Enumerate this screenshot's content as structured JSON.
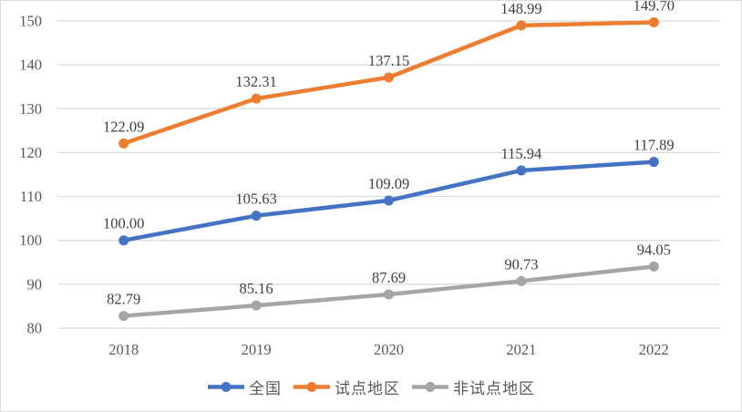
{
  "chart_data": {
    "type": "line",
    "title": "",
    "xlabel": "",
    "ylabel": "",
    "categories": [
      "2018",
      "2019",
      "2020",
      "2021",
      "2022"
    ],
    "series": [
      {
        "name": "全国",
        "color": "#4472C4",
        "values": [
          100.0,
          105.63,
          109.09,
          115.94,
          117.89
        ]
      },
      {
        "name": "试点地区",
        "color": "#ED7D31",
        "values": [
          122.09,
          132.31,
          137.15,
          148.99,
          149.7
        ]
      },
      {
        "name": "非试点地区",
        "color": "#A5A5A5",
        "values": [
          82.79,
          85.16,
          87.69,
          90.73,
          94.05
        ]
      }
    ],
    "ylim": [
      80,
      150
    ],
    "ytick_step": 10,
    "ytick_labels": [
      "80",
      "90",
      "100",
      "110",
      "120",
      "130",
      "140",
      "150"
    ],
    "grid": true,
    "data_labels": true,
    "label_decimals": 2,
    "marker": "circle",
    "legend_position": "bottom",
    "colors": {
      "gridline": "#D9D9D9",
      "frame_border": "#D9D9D9",
      "axis_text": "#595959",
      "data_label": "#404040",
      "background": "#FFFFFF"
    }
  }
}
